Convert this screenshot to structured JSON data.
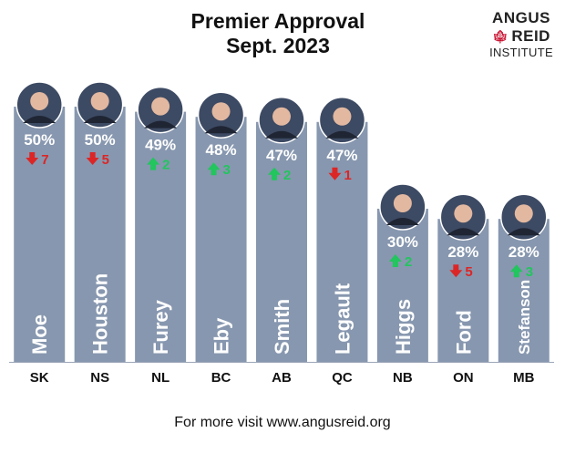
{
  "chart_data": {
    "type": "bar",
    "title": "Premier Approval",
    "subtitle": "Sept. 2023",
    "categories": [
      "SK",
      "NS",
      "NL",
      "BC",
      "AB",
      "QC",
      "NB",
      "ON",
      "MB"
    ],
    "names": [
      "Moe",
      "Houston",
      "Furey",
      "Eby",
      "Smith",
      "Legault",
      "Higgs",
      "Ford",
      "Stefanson"
    ],
    "values": [
      50,
      50,
      49,
      48,
      47,
      47,
      30,
      28,
      28
    ],
    "value_labels": [
      "50%",
      "50%",
      "49%",
      "48%",
      "47%",
      "47%",
      "30%",
      "28%",
      "28%"
    ],
    "changes": [
      {
        "dir": "down",
        "value": "7"
      },
      {
        "dir": "down",
        "value": "5"
      },
      {
        "dir": "up",
        "value": "2"
      },
      {
        "dir": "up",
        "value": "3"
      },
      {
        "dir": "up",
        "value": "2"
      },
      {
        "dir": "down",
        "value": "1"
      },
      {
        "dir": "up",
        "value": "2"
      },
      {
        "dir": "down",
        "value": "5"
      },
      {
        "dir": "up",
        "value": "3"
      }
    ],
    "ylim": [
      0,
      55
    ],
    "colors": {
      "bar": "#8797af",
      "up": "#22c55e",
      "down": "#dc2626",
      "text": "#ffffff"
    }
  },
  "logo": {
    "line1": "ANGUS",
    "line2": "REID",
    "line3": "INSTITUTE"
  },
  "footer": "For more visit www.angusreid.org"
}
